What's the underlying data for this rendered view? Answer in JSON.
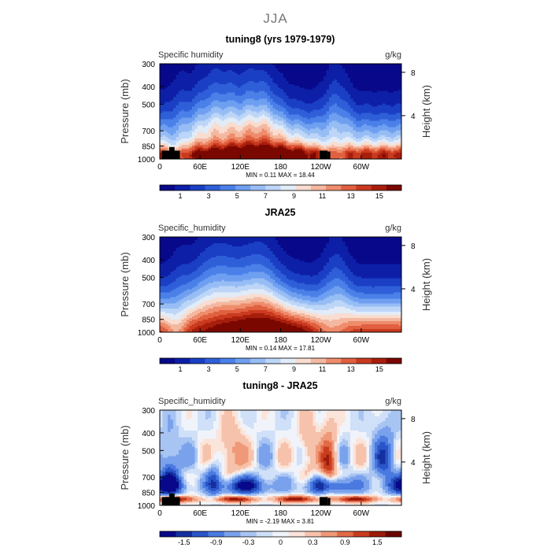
{
  "figure": {
    "supertitle": "JJA",
    "colors": {
      "full_field": [
        "#08088a",
        "#0d1fa6",
        "#1a3fc4",
        "#2f5fd8",
        "#4a80e8",
        "#6f9ff0",
        "#97bdf5",
        "#bdd6f8",
        "#e2ecf8",
        "#f8ddd0",
        "#f4b8a0",
        "#ee8c6c",
        "#e0603f",
        "#c93a1f",
        "#a81e0c",
        "#7a0800"
      ],
      "diff_field": [
        "#08088a",
        "#14309e",
        "#2a55c8",
        "#4a7ae0",
        "#7aa2ec",
        "#a8c4f2",
        "#d0e0f8",
        "#f0f4fa",
        "#fbe4da",
        "#f6c2ac",
        "#ef9978",
        "#e36a47",
        "#c83d1e",
        "#9c1a08",
        "#6a0500"
      ],
      "topography": "#000000"
    }
  },
  "chart_data": [
    {
      "type": "heatmap",
      "title": "tuning8 (yrs 1979-1979)",
      "left_label": "Specific humidity",
      "right_label": "g/kg",
      "xlabel": "",
      "ylabel": "Pressure (mb)",
      "y2label": "Height (km)",
      "xticks": [
        "0",
        "60E",
        "120E",
        "180",
        "120W",
        "60W"
      ],
      "xtick_lon": [
        0,
        60,
        120,
        180,
        240,
        300
      ],
      "xlim": [
        0,
        360
      ],
      "yticks": [
        "300",
        "400",
        "500",
        "700",
        "850",
        "1000"
      ],
      "yticks_p": [
        300,
        400,
        500,
        700,
        850,
        1000
      ],
      "ylim": [
        1000,
        300
      ],
      "y2ticks": [
        "8",
        "4"
      ],
      "y2ticks_km": [
        8,
        4
      ],
      "y_scale": "log-pressure",
      "stats": "MIN =    0.11  MAX =   18.44",
      "min": 0.11,
      "max": 18.44,
      "colorbar_labels": [
        "1",
        "3",
        "5",
        "7",
        "9",
        "11",
        "13",
        "15"
      ],
      "colorbar_levels": [
        0,
        1,
        2,
        3,
        4,
        5,
        6,
        7,
        8,
        9,
        10,
        11,
        12,
        13,
        14,
        15,
        16
      ],
      "palette": "full_field",
      "field": "model"
    },
    {
      "type": "heatmap",
      "title": "JRA25",
      "left_label": "Specific_humidity",
      "right_label": "g/kg",
      "xlabel": "",
      "ylabel": "Pressure (mb)",
      "y2label": "Height (km)",
      "xticks": [
        "0",
        "60E",
        "120E",
        "180",
        "120W",
        "60W"
      ],
      "xtick_lon": [
        0,
        60,
        120,
        180,
        240,
        300
      ],
      "xlim": [
        0,
        360
      ],
      "yticks": [
        "300",
        "400",
        "500",
        "700",
        "850",
        "1000"
      ],
      "yticks_p": [
        300,
        400,
        500,
        700,
        850,
        1000
      ],
      "ylim": [
        1000,
        300
      ],
      "y2ticks": [
        "8",
        "4"
      ],
      "y2ticks_km": [
        8,
        4
      ],
      "y_scale": "log-pressure",
      "stats": "MIN =    0.14  MAX =   17.81",
      "min": 0.14,
      "max": 17.81,
      "colorbar_labels": [
        "1",
        "3",
        "5",
        "7",
        "9",
        "11",
        "13",
        "15"
      ],
      "colorbar_levels": [
        0,
        1,
        2,
        3,
        4,
        5,
        6,
        7,
        8,
        9,
        10,
        11,
        12,
        13,
        14,
        15,
        16
      ],
      "palette": "full_field",
      "field": "obs"
    },
    {
      "type": "heatmap",
      "title": "tuning8 - JRA25",
      "left_label": "Specific_humidity",
      "right_label": "g/kg",
      "xlabel": "",
      "ylabel": "Pressure (mb)",
      "y2label": "Height (km)",
      "xticks": [
        "0",
        "60E",
        "120E",
        "180",
        "120W",
        "60W"
      ],
      "xtick_lon": [
        0,
        60,
        120,
        180,
        240,
        300
      ],
      "xlim": [
        0,
        360
      ],
      "yticks": [
        "300",
        "400",
        "500",
        "700",
        "850",
        "1000"
      ],
      "yticks_p": [
        300,
        400,
        500,
        700,
        850,
        1000
      ],
      "ylim": [
        1000,
        300
      ],
      "y2ticks": [
        "8",
        "4"
      ],
      "y2ticks_km": [
        8,
        4
      ],
      "y_scale": "log-pressure",
      "stats": "MIN =  -2.19  MAX =    3.81",
      "min": -2.19,
      "max": 3.81,
      "colorbar_labels": [
        "-1.5",
        "-0.9",
        "-0.3",
        "0",
        "0.3",
        "0.9",
        "1.5"
      ],
      "colorbar_levels": [
        -2.1,
        -1.5,
        -1.2,
        -0.9,
        -0.6,
        -0.3,
        -0.15,
        0,
        0.15,
        0.3,
        0.6,
        0.9,
        1.2,
        1.5,
        2.1
      ],
      "palette": "diff_field",
      "field": "diff"
    }
  ]
}
